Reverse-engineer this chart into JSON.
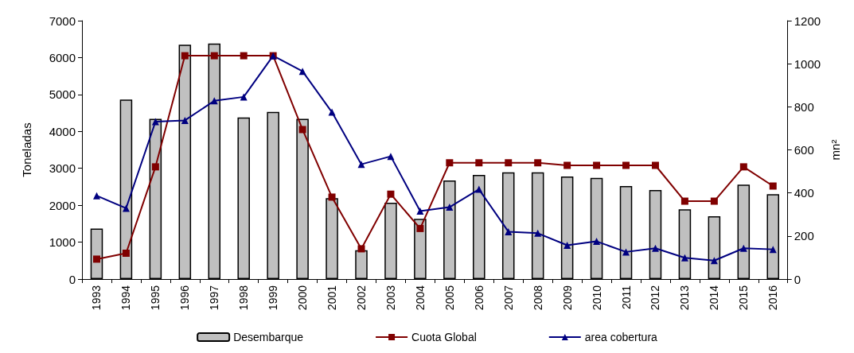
{
  "chart_data": {
    "type": "bar",
    "ylabel": "Toneladas",
    "y2label": "mn²",
    "categories": [
      "1993",
      "1994",
      "1995",
      "1996",
      "1997",
      "1998",
      "1999",
      "2000",
      "2001",
      "2002",
      "2003",
      "2004",
      "2005",
      "2006",
      "2007",
      "2008",
      "2009",
      "2010",
      "2011",
      "2012",
      "2013",
      "2014",
      "2015",
      "2016"
    ],
    "series": [
      {
        "name": "Desembarque",
        "color": "#c0c0c0",
        "values": [
          1370,
          4860,
          4340,
          6350,
          6380,
          4380,
          4530,
          4340,
          2190,
          780,
          2070,
          1630,
          2670,
          2820,
          2890,
          2890,
          2780,
          2740,
          2520,
          2410,
          1890,
          1700,
          2560,
          2300
        ]
      },
      {
        "name": "Cuota Global",
        "type": "line",
        "color": "#800000",
        "marker": "square",
        "values": [
          540,
          700,
          3040,
          6050,
          6050,
          6050,
          6050,
          4050,
          2220,
          820,
          2300,
          1370,
          3150,
          3150,
          3150,
          3150,
          3080,
          3080,
          3080,
          3080,
          2110,
          2110,
          3040,
          2520
        ]
      },
      {
        "name": "area cobertura",
        "type": "line",
        "axis": "y2",
        "color": "#000080",
        "marker": "triangle",
        "values": [
          387,
          329,
          731,
          737,
          828,
          846,
          1037,
          965,
          775,
          533,
          570,
          316,
          334,
          417,
          220,
          213,
          157,
          175,
          126,
          143,
          99,
          86,
          143,
          138
        ]
      }
    ],
    "ylim": [
      0,
      7000
    ],
    "yticks": [
      0,
      1000,
      2000,
      3000,
      4000,
      5000,
      6000,
      7000
    ],
    "y2lim": [
      0,
      1200
    ],
    "y2ticks": [
      0,
      200,
      400,
      600,
      800,
      1000,
      1200
    ],
    "grid": false,
    "legend": "bottom",
    "line_style": "solid"
  }
}
